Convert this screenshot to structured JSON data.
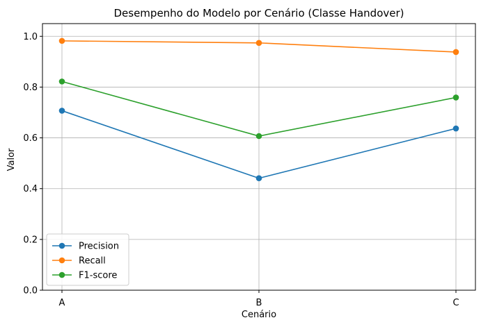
{
  "chart_data": {
    "type": "line",
    "title": "Desempenho do Modelo por Cenário (Classe Handover)",
    "xlabel": "Cenário",
    "ylabel": "Valor",
    "categories": [
      "A",
      "B",
      "C"
    ],
    "ylim": [
      0,
      1.05
    ],
    "yticks": [
      "0.0",
      "0.2",
      "0.4",
      "0.6",
      "0.8",
      "1.0"
    ],
    "ytick_values": [
      0,
      0.2,
      0.4,
      0.6,
      0.8,
      1.0
    ],
    "grid": true,
    "legend_position": "lower-left",
    "series": [
      {
        "name": "Precision",
        "color": "#1f77b4",
        "values": [
          0.707,
          0.441,
          0.637
        ]
      },
      {
        "name": "Recall",
        "color": "#ff7f0e",
        "values": [
          0.982,
          0.974,
          0.938
        ]
      },
      {
        "name": "F1-score",
        "color": "#2ca02c",
        "values": [
          0.822,
          0.607,
          0.759
        ]
      }
    ]
  }
}
